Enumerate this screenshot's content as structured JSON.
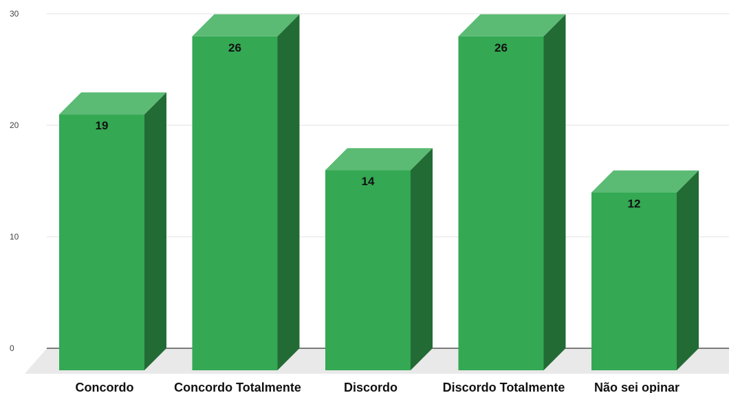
{
  "chart_data": {
    "type": "bar",
    "style": "3d",
    "categories": [
      "Concordo",
      "Concordo Totalmente",
      "Discordo",
      "Discordo Totalmente",
      "Não sei opinar"
    ],
    "values": [
      19,
      26,
      14,
      26,
      12
    ],
    "data_labels": [
      "19",
      "26",
      "14",
      "26",
      "12"
    ],
    "title": "",
    "xlabel": "",
    "ylabel": "",
    "ylim": [
      0,
      30
    ],
    "yticks": [
      0,
      10,
      20,
      30
    ],
    "grid": true,
    "legend": "none",
    "colors": {
      "bar_front": "#34a853",
      "bar_top": "#5bbb74",
      "bar_side": "#226b35",
      "grid": "#e0e0e0",
      "floor": "#e9e9e9",
      "baseline": "#333333"
    }
  }
}
